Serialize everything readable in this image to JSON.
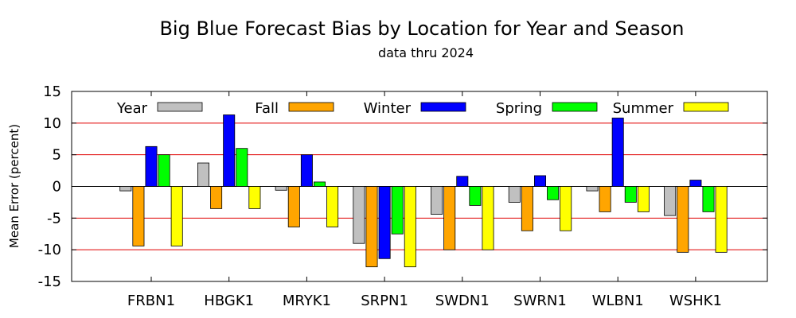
{
  "chart_data": {
    "type": "bar",
    "title": "Big Blue Forecast Bias by Location for Year and Season",
    "subtitle": "data thru 2024",
    "xlabel": "",
    "ylabel": "Mean Error (percent)",
    "ylim": [
      -15,
      15
    ],
    "yticks": [
      15,
      10,
      5,
      0,
      -5,
      -10,
      -15
    ],
    "grid": true,
    "grid_color": "#e00000",
    "legend_placement": "top",
    "categories": [
      "FRBN1",
      "HBGK1",
      "MRYK1",
      "SRPN1",
      "SWDN1",
      "SWRN1",
      "WLBN1",
      "WSHK1"
    ],
    "series": [
      {
        "name": "Year",
        "color": "#c0c0c0",
        "values": [
          -0.7,
          3.7,
          -0.6,
          -9.0,
          -4.4,
          -2.5,
          -0.7,
          -4.6
        ]
      },
      {
        "name": "Fall",
        "color": "#ffa500",
        "values": [
          -9.4,
          -3.5,
          -6.4,
          -12.7,
          -10.0,
          -7.0,
          -4.0,
          -10.4
        ]
      },
      {
        "name": "Winter",
        "color": "#0000ff",
        "values": [
          6.3,
          11.3,
          5.0,
          -11.4,
          1.6,
          1.7,
          10.8,
          1.0
        ]
      },
      {
        "name": "Spring",
        "color": "#00ff00",
        "values": [
          5.0,
          6.0,
          0.7,
          -7.5,
          -3.0,
          -2.1,
          -2.5,
          -4.0
        ]
      },
      {
        "name": "Summer",
        "color": "#ffff00",
        "values": [
          -9.4,
          -3.5,
          -6.4,
          -12.7,
          -10.0,
          -7.0,
          -4.0,
          -10.4
        ]
      }
    ]
  }
}
